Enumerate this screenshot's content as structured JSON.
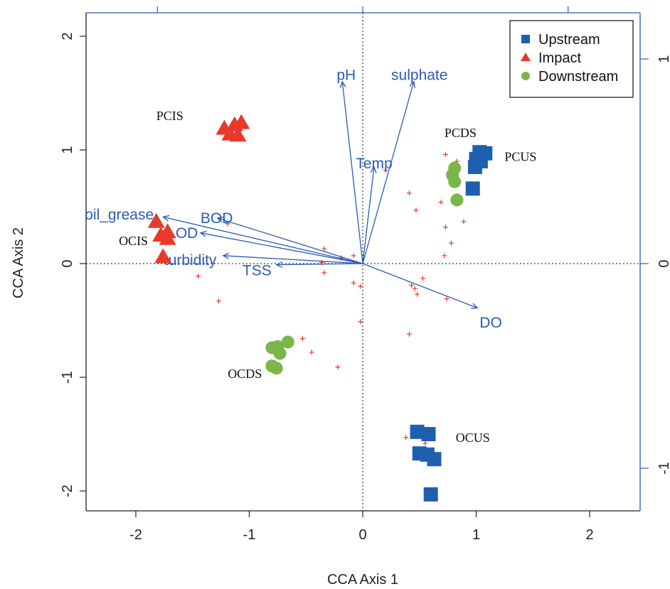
{
  "chart_data": {
    "type": "scatter",
    "xlabel": "CCA Axis 1",
    "ylabel": "CCA Axis 2",
    "xlim": [
      -2.4,
      2.4
    ],
    "ylim": [
      -2.2,
      2.1
    ],
    "x_ticks": [
      "-2",
      "-1",
      "0",
      "1",
      "2"
    ],
    "y_ticks": [
      "-2",
      "-1",
      "0",
      "1",
      "2"
    ],
    "right_ticks": [
      "-1",
      "0",
      "1"
    ],
    "top_ticks": [
      "-1",
      "0",
      "1"
    ],
    "grid": false,
    "zero_lines": true,
    "legend_position": "top-right",
    "colors": {
      "upstream": "#1f5faf",
      "impact": "#e8392b",
      "downstream": "#7ab648",
      "vectors": "#2b5bb5",
      "species": "#e8392b"
    },
    "series": [
      {
        "name": "Upstream",
        "marker": "square",
        "points": [
          [
            1.03,
            0.98
          ],
          [
            1.08,
            0.97
          ],
          [
            1.0,
            0.92
          ],
          [
            1.04,
            0.9
          ],
          [
            0.99,
            0.85
          ],
          [
            0.97,
            0.66
          ],
          [
            0.48,
            -1.48
          ],
          [
            0.58,
            -1.5
          ],
          [
            0.5,
            -1.67
          ],
          [
            0.57,
            -1.68
          ],
          [
            0.63,
            -1.72
          ],
          [
            0.6,
            -2.03
          ]
        ]
      },
      {
        "name": "Impact",
        "marker": "triangle",
        "points": [
          [
            -1.22,
            1.19
          ],
          [
            -1.13,
            1.22
          ],
          [
            -1.07,
            1.24
          ],
          [
            -1.17,
            1.14
          ],
          [
            -1.1,
            1.13
          ],
          [
            -1.82,
            0.37
          ],
          [
            -1.72,
            0.28
          ],
          [
            -1.78,
            0.25
          ],
          [
            -1.72,
            0.22
          ],
          [
            -1.76,
            0.06
          ]
        ]
      },
      {
        "name": "Downstream",
        "marker": "circle",
        "points": [
          [
            0.81,
            0.84
          ],
          [
            0.79,
            0.78
          ],
          [
            0.81,
            0.72
          ],
          [
            0.83,
            0.56
          ],
          [
            -0.8,
            -0.74
          ],
          [
            -0.75,
            -0.73
          ],
          [
            -0.66,
            -0.69
          ],
          [
            -0.73,
            -0.79
          ],
          [
            -0.8,
            -0.9
          ],
          [
            -0.76,
            -0.92
          ]
        ]
      }
    ],
    "site_labels": [
      {
        "text": "PCIS",
        "x": -1.82,
        "y": 1.3
      },
      {
        "text": "PCDS",
        "x": 0.72,
        "y": 1.15
      },
      {
        "text": "PCUS",
        "x": 1.25,
        "y": 0.94
      },
      {
        "text": "OCIS",
        "x": -2.15,
        "y": 0.2
      },
      {
        "text": "OCDS",
        "x": -1.19,
        "y": -0.97
      },
      {
        "text": "OCUS",
        "x": 0.82,
        "y": -1.53
      }
    ],
    "vectors": [
      {
        "name": "pH",
        "x": -0.18,
        "y": 1.6,
        "lx": -0.23,
        "ly": 1.66
      },
      {
        "name": "sulphate",
        "x": 0.45,
        "y": 1.6,
        "lx": 0.5,
        "ly": 1.66
      },
      {
        "name": "Temp",
        "x": 0.1,
        "y": 0.85,
        "lx": 0.1,
        "ly": 0.88
      },
      {
        "name": "oil_grease",
        "x": -1.76,
        "y": 0.41,
        "lx": -2.45,
        "ly": 0.43
      },
      {
        "name": "BOD",
        "x": -1.28,
        "y": 0.4,
        "lx": -1.43,
        "ly": 0.4
      },
      {
        "name": "OD",
        "x": -1.43,
        "y": 0.27,
        "lx": -1.65,
        "ly": 0.27
      },
      {
        "name": "turbidity",
        "x": -1.23,
        "y": 0.07,
        "lx": -1.75,
        "ly": 0.03
      },
      {
        "name": "TSS",
        "x": -0.76,
        "y": -0.01,
        "lx": -1.06,
        "ly": -0.06
      },
      {
        "name": "DO",
        "x": 1.01,
        "y": -0.39,
        "lx": 1.03,
        "ly": -0.52
      }
    ],
    "species_points": [
      [
        0.73,
        0.96
      ],
      [
        0.83,
        0.9
      ],
      [
        0.2,
        0.82
      ],
      [
        0.41,
        0.62
      ],
      [
        0.69,
        0.54
      ],
      [
        0.47,
        0.47
      ],
      [
        0.89,
        0.37
      ],
      [
        0.73,
        0.32
      ],
      [
        0.78,
        0.18
      ],
      [
        0.72,
        0.07
      ],
      [
        -1.19,
        0.35
      ],
      [
        -0.34,
        0.13
      ],
      [
        -0.08,
        0.07
      ],
      [
        -0.19,
        0.05
      ],
      [
        -0.36,
        0.01
      ],
      [
        -0.34,
        -0.08
      ],
      [
        -0.08,
        -0.17
      ],
      [
        -0.02,
        -0.2
      ],
      [
        0.53,
        -0.13
      ],
      [
        0.43,
        -0.19
      ],
      [
        0.46,
        -0.22
      ],
      [
        0.48,
        -0.27
      ],
      [
        0.74,
        -0.31
      ],
      [
        -1.45,
        -0.11
      ],
      [
        -1.27,
        -0.33
      ],
      [
        -0.02,
        -0.51
      ],
      [
        0.41,
        -0.62
      ],
      [
        -0.53,
        -0.66
      ],
      [
        -0.45,
        -0.78
      ],
      [
        -0.22,
        -0.91
      ],
      [
        0.51,
        -1.48
      ],
      [
        0.38,
        -1.53
      ],
      [
        0.55,
        -1.58
      ]
    ],
    "legend": [
      "Upstream",
      "Impact",
      "Downstream"
    ]
  }
}
